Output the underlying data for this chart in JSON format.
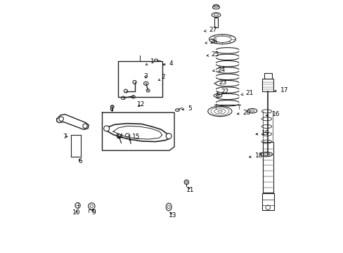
{
  "background_color": "#ffffff",
  "label_data": [
    [
      1,
      0.395,
      0.742,
      0.415,
      0.758
    ],
    [
      2,
      0.445,
      0.68,
      0.458,
      0.696
    ],
    [
      3,
      0.4,
      0.683,
      0.388,
      0.698
    ],
    [
      4,
      0.455,
      0.742,
      0.49,
      0.75
    ],
    [
      5,
      0.53,
      0.565,
      0.562,
      0.572
    ],
    [
      6,
      0.13,
      0.38,
      0.13,
      0.362
    ],
    [
      7,
      0.09,
      0.46,
      0.068,
      0.46
    ],
    [
      8,
      0.265,
      0.558,
      0.252,
      0.572
    ],
    [
      9,
      0.18,
      0.178,
      0.182,
      0.16
    ],
    [
      10,
      0.125,
      0.178,
      0.108,
      0.16
    ],
    [
      11,
      0.56,
      0.268,
      0.558,
      0.248
    ],
    [
      12,
      0.36,
      0.572,
      0.362,
      0.588
    ],
    [
      13,
      0.488,
      0.168,
      0.488,
      0.148
    ],
    [
      14,
      0.295,
      0.448,
      0.278,
      0.46
    ],
    [
      15,
      0.33,
      0.445,
      0.342,
      0.46
    ],
    [
      16,
      0.862,
      0.542,
      0.895,
      0.548
    ],
    [
      17,
      0.895,
      0.638,
      0.928,
      0.644
    ],
    [
      18,
      0.795,
      0.378,
      0.828,
      0.384
    ],
    [
      19,
      0.822,
      0.468,
      0.855,
      0.474
    ],
    [
      20,
      0.748,
      0.548,
      0.78,
      0.555
    ],
    [
      21,
      0.772,
      0.625,
      0.79,
      0.632
    ],
    [
      22,
      0.668,
      0.63,
      0.695,
      0.637
    ],
    [
      23,
      0.658,
      0.668,
      0.685,
      0.675
    ],
    [
      24,
      0.652,
      0.718,
      0.68,
      0.725
    ],
    [
      25,
      0.628,
      0.778,
      0.656,
      0.785
    ],
    [
      26,
      0.622,
      0.828,
      0.65,
      0.835
    ],
    [
      27,
      0.618,
      0.875,
      0.646,
      0.882
    ]
  ]
}
